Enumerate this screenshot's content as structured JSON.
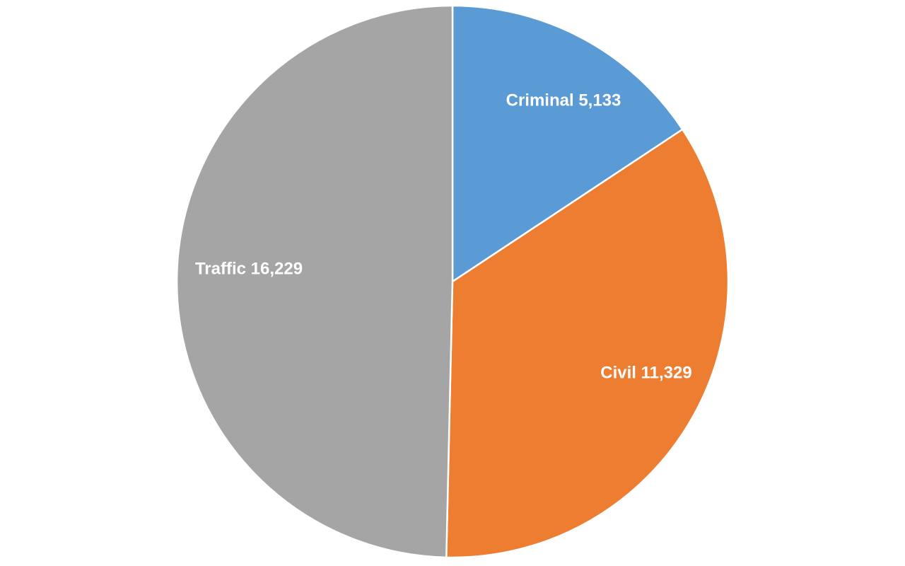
{
  "chart_data": {
    "type": "pie",
    "title": "",
    "categories": [
      "Criminal",
      "Civil",
      "Traffic"
    ],
    "values": [
      5133,
      11329,
      16229
    ],
    "value_labels": [
      "5,133",
      "11,329",
      "16,229"
    ],
    "colors": [
      "#5b9bd5",
      "#ed7d31",
      "#a5a5a5"
    ],
    "start_angle_deg": 0,
    "direction": "clockwise",
    "legend": "none",
    "data_labels": "inside"
  }
}
